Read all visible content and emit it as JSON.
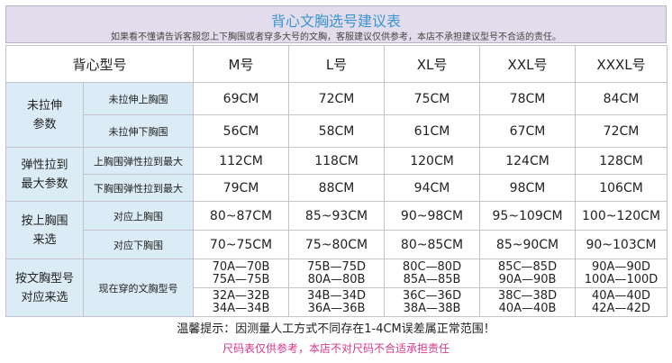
{
  "header": {
    "title": "背心文胸选号建议表",
    "subtitle": "如果看不懂请告诉客服您上下胸围或者穿多大号的文胸，客服建议仅供参考，本店不承担建议型号不合适的责任。"
  },
  "table": {
    "corner": "背心型号",
    "sizes": [
      "M号",
      "L号",
      "XL号",
      "XXL号",
      "XXXL号"
    ],
    "groups": [
      {
        "label_lines": [
          "未拉伸",
          "参数"
        ],
        "rows": [
          {
            "label": "未拉伸上胸围",
            "values": [
              [
                "69CM"
              ],
              [
                "72CM"
              ],
              [
                "75CM"
              ],
              [
                "78CM"
              ],
              [
                "84CM"
              ]
            ]
          },
          {
            "label": "未拉伸下胸围",
            "values": [
              [
                "56CM"
              ],
              [
                "58CM"
              ],
              [
                "61CM"
              ],
              [
                "67CM"
              ],
              [
                "72CM"
              ]
            ]
          }
        ]
      },
      {
        "label_lines": [
          "弹性拉到",
          "最大参数"
        ],
        "rows": [
          {
            "label": "上胸围弹性拉到最大",
            "values": [
              [
                "112CM"
              ],
              [
                "118CM"
              ],
              [
                "120CM"
              ],
              [
                "124CM"
              ],
              [
                "128CM"
              ]
            ]
          },
          {
            "label": "下胸围弹性拉到最大",
            "values": [
              [
                "79CM"
              ],
              [
                "88CM"
              ],
              [
                "94CM"
              ],
              [
                "98CM"
              ],
              [
                "106CM"
              ]
            ]
          }
        ]
      },
      {
        "label_lines": [
          "按上胸围",
          "来选"
        ],
        "rows": [
          {
            "label": "对应上胸围",
            "values": [
              [
                "80~87CM"
              ],
              [
                "85~93CM"
              ],
              [
                "90~98CM"
              ],
              [
                "95~109CM"
              ],
              [
                "100~120CM"
              ]
            ]
          },
          {
            "label": "对应下胸围",
            "values": [
              [
                "70~75CM"
              ],
              [
                "75~80CM"
              ],
              [
                "80~85CM"
              ],
              [
                "85~90CM"
              ],
              [
                "90~103CM"
              ]
            ]
          }
        ]
      },
      {
        "label_lines": [
          "按文胸型号",
          "对应来选"
        ],
        "rows": [
          {
            "label": "现在穿的文胸型号",
            "rowspan_label": true,
            "values": [
              [
                "70A—70B",
                "75A—75B"
              ],
              [
                "75B—75D",
                "80A—80B"
              ],
              [
                "80C—80D",
                "85A—85B"
              ],
              [
                "85C—85D",
                "90A—90B"
              ],
              [
                "90A—90D",
                "100A—100D"
              ]
            ]
          },
          {
            "label": "",
            "values": [
              [
                "32A—32B",
                "34A—34B"
              ],
              [
                "34B—34D",
                "36A—36B"
              ],
              [
                "36C—36D",
                "38A—38B"
              ],
              [
                "38C—38D",
                "40A—40B"
              ],
              [
                "40A—40D",
                "42A—42D"
              ]
            ]
          }
        ]
      }
    ]
  },
  "notes": {
    "tip": "温馨提示：因测量人工方式不同存在1-4CM误差属正常范围！",
    "disclaimer": "尺码表仅供参考，本店不对尺码不合适承担责任"
  }
}
